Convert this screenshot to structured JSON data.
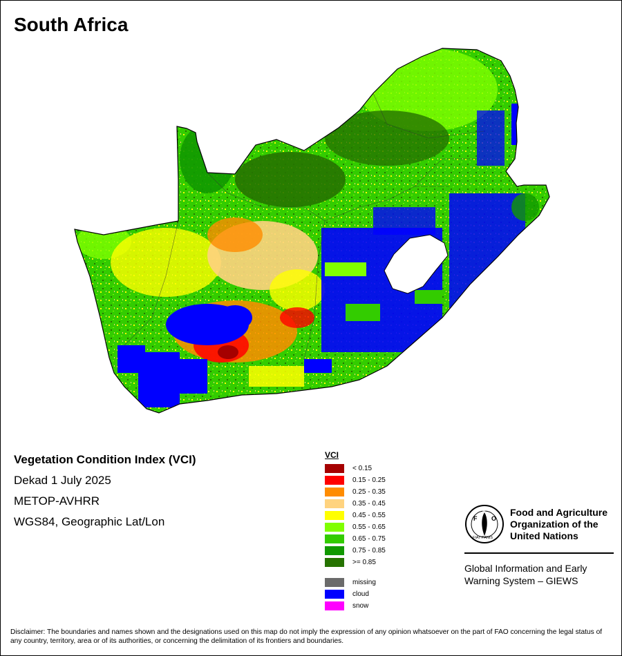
{
  "title": "South Africa",
  "map_info": {
    "line1": "Vegetation Condition Index (VCI)",
    "line2": "Dekad 1 July 2025",
    "line3": "METOP-AVHRR",
    "line4": "WGS84, Geographic Lat/Lon"
  },
  "legend": {
    "title": "VCI",
    "classes": [
      {
        "label": "< 0.15",
        "color": "#a50000"
      },
      {
        "label": "0.15 - 0.25",
        "color": "#ff0000"
      },
      {
        "label": "0.25 - 0.35",
        "color": "#ff8c00"
      },
      {
        "label": "0.35 - 0.45",
        "color": "#ffd37f"
      },
      {
        "label": "0.45 - 0.55",
        "color": "#ffff00"
      },
      {
        "label": "0.55 - 0.65",
        "color": "#80ff00"
      },
      {
        "label": "0.65 - 0.75",
        "color": "#33cc00"
      },
      {
        "label": "0.75 - 0.85",
        "color": "#119900"
      },
      {
        "label": ">= 0.85",
        "color": "#267300"
      }
    ],
    "extras": [
      {
        "label": "missing",
        "color": "#6b6b6b"
      },
      {
        "label": "cloud",
        "color": "#0000ff"
      },
      {
        "label": "snow",
        "color": "#ff00ff"
      }
    ]
  },
  "logo": {
    "org_line1": "Food and Agriculture",
    "org_line2": "Organization of the",
    "org_line3": "United Nations",
    "emblem_letters": "FAO",
    "emblem_motto": "FIAT PANIS",
    "system_line1": "Global Information and Early",
    "system_line2": "Warning System – GIEWS"
  },
  "disclaimer": "Disclaimer: The boundaries and names shown and the designations used on this map do not imply the expression of any opinion whatsoever on the part of FAO concerning the legal status of any country, territory, area or of its authorities, or concerning the delimitation of its frontiers and boundaries."
}
